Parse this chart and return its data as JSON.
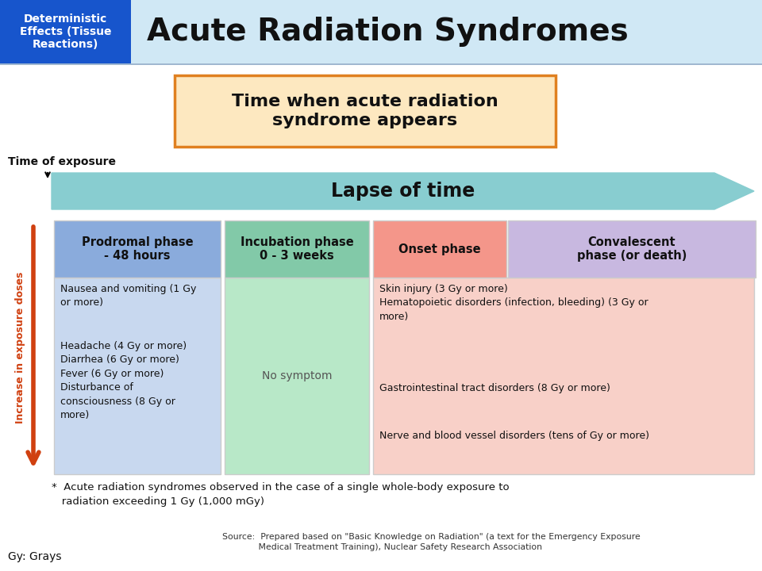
{
  "title": "Acute Radiation Syndromes",
  "title_box_text": "Deterministic\nEffects (Tissue\nReactions)",
  "title_box_bg": "#1755cc",
  "title_box_text_color": "#ffffff",
  "header_strip_bg": "#d0e8f5",
  "time_box_text": "Time when acute radiation\nsyndrome appears",
  "time_box_bg": "#fde8c0",
  "time_box_border": "#e08020",
  "arrow_text": "Lapse of time",
  "arrow_color": "#88cdd0",
  "time_of_exposure_label": "Time of exposure",
  "col_headers": [
    "Prodromal phase\n- 48 hours",
    "Incubation phase\n0 - 3 weeks",
    "Onset phase",
    "Convalescent\nphase (or death)"
  ],
  "col_header_bg": [
    "#8aabdc",
    "#82c9a8",
    "#f4968a",
    "#c8b8e0"
  ],
  "col_body_bg_prodromal": "#c8d8ef",
  "col_body_bg_incubation": "#b8e8c8",
  "col_body_bg_onset_conv": "#f8d0c8",
  "col1_line1": "Nausea and vomiting (1 Gy\nor more)",
  "col1_line2": "Headache (4 Gy or more)\nDiarrhea (6 Gy or more)\nFever (6 Gy or more)\nDisturbance of\nconsciousness (8 Gy or\nmore)",
  "col2_content": "No symptom",
  "col3_line1": "Skin injury (3 Gy or more)\nHematopoietic disorders (infection, bleeding) (3 Gy or\nmore)",
  "col3_line2": "Gastrointestinal tract disorders (8 Gy or more)",
  "col3_line3": "Nerve and blood vessel disorders (tens of Gy or more)",
  "increase_label": "Increase in exposure doses",
  "arrow_increase_color": "#d04010",
  "footnote_star": "*  Acute radiation syndromes observed in the case of a single whole-body exposure to\n   radiation exceeding 1 Gy (1,000 mGy)",
  "source_text": "Source:  Prepared based on \"Basic Knowledge on Radiation\" (a text for the Emergency Exposure\n             Medical Treatment Training), Nuclear Safety Research Association",
  "gy_label": "Gy: Grays",
  "fig_w": 9.6,
  "fig_h": 7.2,
  "dpi": 100
}
